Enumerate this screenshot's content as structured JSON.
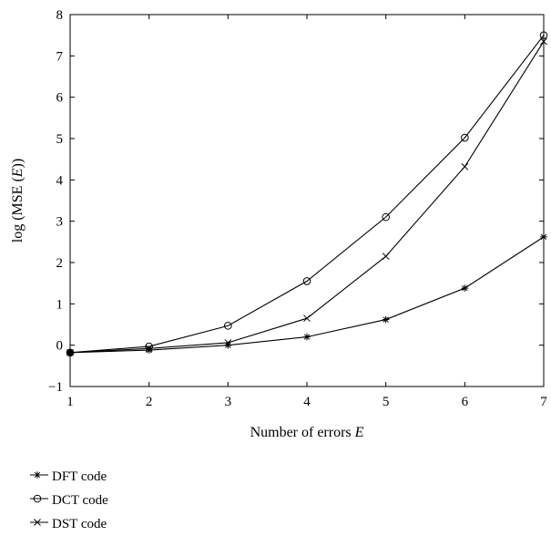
{
  "chart_data": {
    "type": "line",
    "title": "",
    "xlabel": "Number of errors",
    "xlabel_var": "E",
    "ylabel_prefix": "log (MSE (",
    "ylabel_var": "E",
    "ylabel_suffix": "))",
    "xlim": [
      1,
      7
    ],
    "ylim": [
      -1,
      8
    ],
    "xticks": [
      1,
      2,
      3,
      4,
      5,
      6,
      7
    ],
    "yticks": [
      -1,
      0,
      1,
      2,
      3,
      4,
      5,
      6,
      7,
      8
    ],
    "ytick_labels": [
      "−1",
      "0",
      "1",
      "2",
      "3",
      "4",
      "5",
      "6",
      "7",
      "8"
    ],
    "grid": false,
    "legend_position": "below-left",
    "x": [
      1,
      2,
      3,
      4,
      5,
      6,
      7
    ],
    "series": [
      {
        "name": "DFT code",
        "marker": "star",
        "values": [
          -0.18,
          -0.12,
          0.0,
          0.2,
          0.62,
          1.38,
          2.62
        ]
      },
      {
        "name": "DCT code",
        "marker": "circle",
        "values": [
          -0.18,
          -0.03,
          0.47,
          1.55,
          3.1,
          5.02,
          7.5
        ]
      },
      {
        "name": "DST code",
        "marker": "x",
        "values": [
          -0.18,
          -0.08,
          0.06,
          0.65,
          2.15,
          4.32,
          7.35
        ]
      }
    ]
  }
}
